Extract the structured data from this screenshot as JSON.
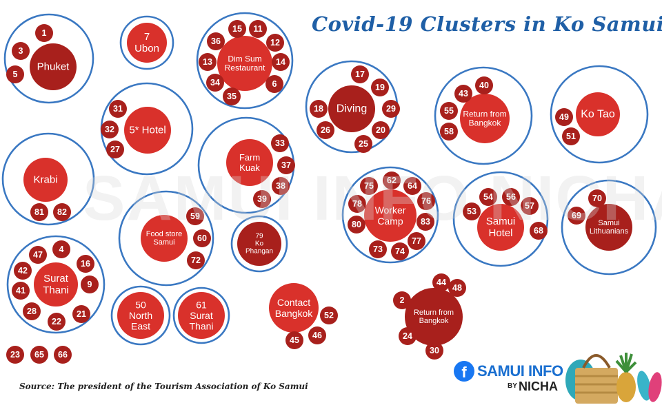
{
  "title": "Covid-19 Clusters in Ko Samui",
  "watermark": "SAMUI INFO NICHA",
  "source": "Source: The president of the Tourism Association of Ko Samui",
  "brand": {
    "name": "SAMUI INFO",
    "by": "BY",
    "sub": "NICHA",
    "icon": "facebook-icon"
  },
  "colors": {
    "ring": "#3a78c2",
    "main": "#d9312b",
    "dark": "#a8201c",
    "title": "#1f5fa6"
  },
  "clusters": [
    {
      "id": "phuket",
      "label": [
        "Phuket"
      ],
      "cases": [
        "1",
        "3",
        "5"
      ]
    },
    {
      "id": "ubon",
      "label": [
        "7",
        "Ubon"
      ],
      "cases": []
    },
    {
      "id": "dim-sum",
      "label": [
        "Dim Sum",
        "Restaurant"
      ],
      "cases": [
        "36",
        "15",
        "11",
        "12",
        "14",
        "6",
        "35",
        "34",
        "13"
      ]
    },
    {
      "id": "hotel-5star",
      "label": [
        "5* Hotel"
      ],
      "cases": [
        "31",
        "32",
        "27"
      ]
    },
    {
      "id": "diving",
      "label": [
        "Diving"
      ],
      "cases": [
        "17",
        "19",
        "29",
        "20",
        "25",
        "26",
        "18"
      ]
    },
    {
      "id": "return-bangkok-1",
      "label": [
        "Return from",
        "Bangkok"
      ],
      "cases": [
        "43",
        "40",
        "55",
        "58"
      ]
    },
    {
      "id": "ko-tao",
      "label": [
        "Ko Tao"
      ],
      "cases": [
        "49",
        "51"
      ]
    },
    {
      "id": "krabi",
      "label": [
        "Krabi"
      ],
      "cases": [
        "81",
        "82"
      ]
    },
    {
      "id": "farm-kuak",
      "label": [
        "Farm",
        "Kuak"
      ],
      "cases": [
        "33",
        "37",
        "38",
        "39"
      ]
    },
    {
      "id": "food-store",
      "label": [
        "Food store",
        "Samui"
      ],
      "cases": [
        "59",
        "60",
        "72"
      ]
    },
    {
      "id": "ko-phangan",
      "label": [
        "79",
        "Ko",
        "Phangan"
      ],
      "cases": []
    },
    {
      "id": "worker-camp",
      "label": [
        "Worker",
        "Camp"
      ],
      "cases": [
        "62",
        "64",
        "76",
        "83",
        "77",
        "74",
        "73",
        "80",
        "78",
        "75"
      ]
    },
    {
      "id": "samui-hotel",
      "label": [
        "Samui",
        "Hotel"
      ],
      "cases": [
        "54",
        "56",
        "57",
        "68",
        "53"
      ]
    },
    {
      "id": "samui-lithuanians",
      "label": [
        "Samui",
        "Lithuanians"
      ],
      "cases": [
        "70",
        "69"
      ]
    },
    {
      "id": "surat-thani-1",
      "label": [
        "Surat",
        "Thani"
      ],
      "cases": [
        "4",
        "16",
        "9",
        "21",
        "22",
        "28",
        "41",
        "42",
        "47"
      ]
    },
    {
      "id": "north-east",
      "label": [
        "50",
        "North",
        "East"
      ],
      "cases": []
    },
    {
      "id": "surat-thani-2",
      "label": [
        "61",
        "Surat",
        "Thani"
      ],
      "cases": []
    },
    {
      "id": "contact-bangkok",
      "label": [
        "Contact",
        "Bangkok"
      ],
      "cases": [
        "52",
        "46",
        "45"
      ]
    },
    {
      "id": "return-bangkok-2",
      "label": [
        "Return from",
        "Bangkok"
      ],
      "cases": [
        "44",
        "48",
        "2",
        "24",
        "30"
      ]
    },
    {
      "id": "individual",
      "label": [],
      "cases": [
        "23",
        "65",
        "66"
      ]
    }
  ]
}
